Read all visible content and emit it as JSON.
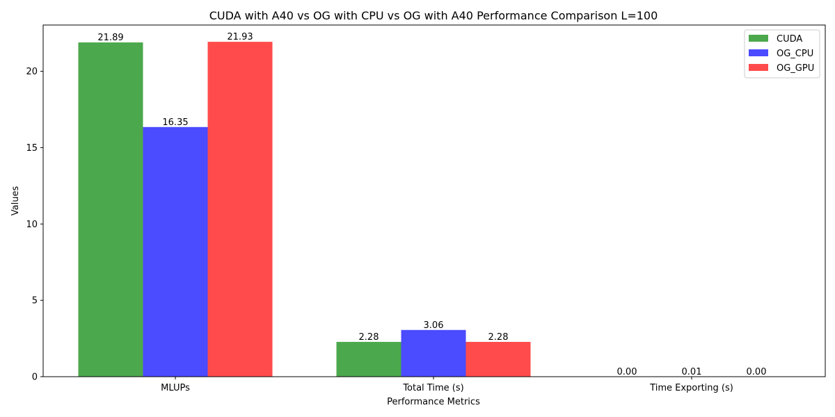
{
  "chart_data": {
    "type": "bar",
    "title": "CUDA with A40 vs OG with CPU vs OG with A40 Performance Comparison L=100",
    "xlabel": "Performance Metrics",
    "ylabel": "Values",
    "categories": [
      "MLUPs",
      "Total Time (s)",
      "Time Exporting (s)"
    ],
    "series": [
      {
        "name": "CUDA",
        "color": "#4ca84c",
        "values": [
          21.89,
          2.28,
          0.0
        ],
        "labels": [
          "21.89",
          "2.28",
          "0.00"
        ]
      },
      {
        "name": "OG_CPU",
        "color": "#4b4bff",
        "values": [
          16.35,
          3.06,
          0.01
        ],
        "labels": [
          "16.35",
          "3.06",
          "0.01"
        ]
      },
      {
        "name": "OG_GPU",
        "color": "#ff4b4b",
        "values": [
          21.93,
          2.28,
          0.0
        ],
        "labels": [
          "21.93",
          "2.28",
          "0.00"
        ]
      }
    ],
    "ylim": [
      0,
      23.03
    ],
    "yticks": [
      0,
      5,
      10,
      15,
      20
    ],
    "ytick_labels": [
      "0",
      "5",
      "10",
      "15",
      "20"
    ],
    "grid": false,
    "legend_position": "top-right"
  }
}
